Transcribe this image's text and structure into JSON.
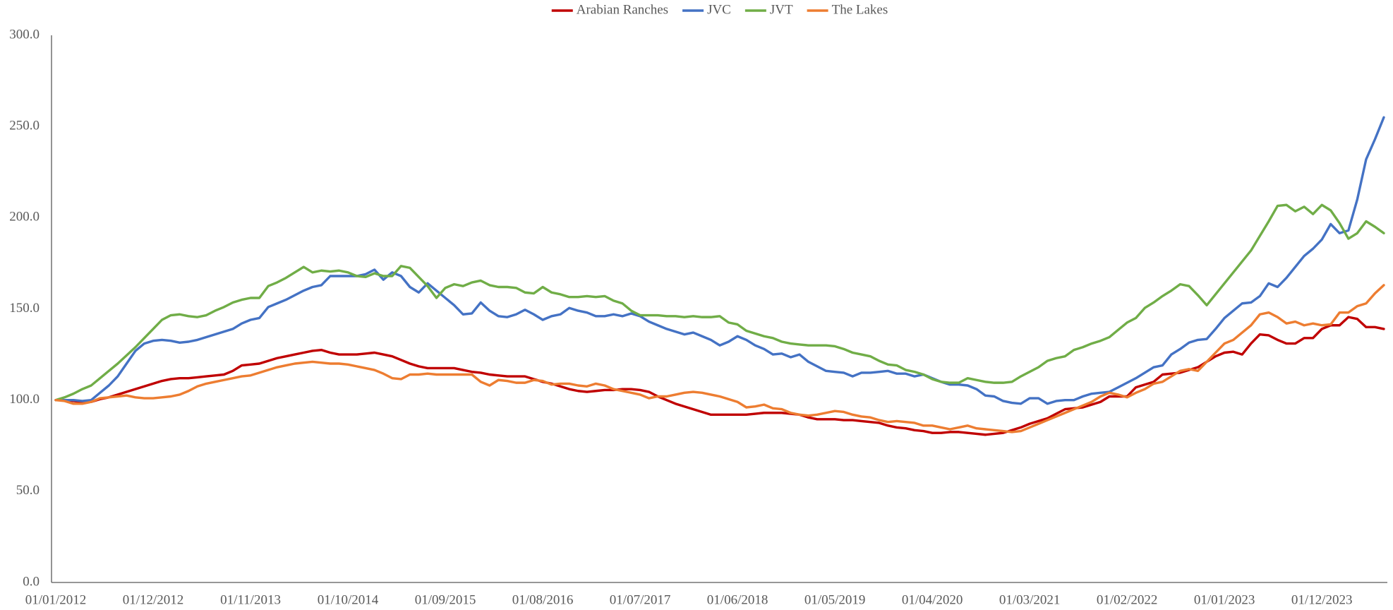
{
  "chart_data": {
    "type": "line",
    "categories": [
      "01/01/2012",
      null,
      null,
      null,
      null,
      null,
      null,
      null,
      null,
      null,
      null,
      "01/12/2012",
      null,
      null,
      null,
      null,
      null,
      null,
      null,
      null,
      null,
      null,
      "01/11/2013",
      null,
      null,
      null,
      null,
      null,
      null,
      null,
      null,
      null,
      null,
      "01/10/2014",
      null,
      null,
      null,
      null,
      null,
      null,
      null,
      null,
      null,
      null,
      "01/09/2015",
      null,
      null,
      null,
      null,
      null,
      null,
      null,
      null,
      null,
      null,
      "01/08/2016",
      null,
      null,
      null,
      null,
      null,
      null,
      null,
      null,
      null,
      null,
      "01/07/2017",
      null,
      null,
      null,
      null,
      null,
      null,
      null,
      null,
      null,
      null,
      "01/06/2018",
      null,
      null,
      null,
      null,
      null,
      null,
      null,
      null,
      null,
      null,
      "01/05/2019",
      null,
      null,
      null,
      null,
      null,
      null,
      null,
      null,
      null,
      null,
      "01/04/2020",
      null,
      null,
      null,
      null,
      null,
      null,
      null,
      null,
      null,
      null,
      "01/03/2021",
      null,
      null,
      null,
      null,
      null,
      null,
      null,
      null,
      null,
      null,
      "01/02/2022",
      null,
      null,
      null,
      null,
      null,
      null,
      null,
      null,
      null,
      null,
      "01/01/2023",
      null,
      null,
      null,
      null,
      null,
      null,
      null,
      null,
      null,
      null,
      "01/12/2023",
      null,
      null,
      null,
      null,
      null,
      null,
      null
    ],
    "series": [
      {
        "name": "Arabian Ranches",
        "color": "#c00000",
        "values": [
          100,
          100,
          99.5,
          99,
          99,
          100.5,
          101.5,
          103,
          104.5,
          106,
          107.5,
          109,
          110.5,
          111.5,
          112,
          112,
          112.5,
          113,
          113.5,
          114,
          116,
          119,
          119.5,
          120,
          121.5,
          123,
          124,
          125,
          126,
          127,
          127.5,
          126,
          125,
          125,
          125,
          125.5,
          126,
          125,
          124,
          122,
          120,
          118.5,
          117.5,
          117.5,
          117.5,
          117.5,
          116.5,
          115.5,
          115,
          114,
          113.5,
          113,
          113,
          113,
          111.5,
          110,
          109,
          107.5,
          106,
          105,
          104.5,
          105,
          105.5,
          105.5,
          106,
          106,
          105.5,
          104.5,
          102,
          100,
          98,
          96.5,
          95,
          93.5,
          92,
          92,
          92,
          92,
          92,
          92.5,
          93,
          93,
          93,
          92.5,
          92,
          90.5,
          89.5,
          89.5,
          89.5,
          89,
          89,
          88.5,
          88,
          87.5,
          86,
          85,
          84.5,
          83.5,
          83,
          82,
          82,
          82.5,
          82.5,
          82,
          81.5,
          81,
          81.5,
          82,
          83.5,
          85,
          87,
          88.5,
          90,
          92.5,
          95,
          95.5,
          96,
          97.5,
          99,
          102,
          102,
          102,
          107,
          108.5,
          110,
          114,
          114.5,
          115,
          116.5,
          118,
          121,
          124,
          126,
          126.5,
          125,
          131,
          136,
          135.5,
          133,
          131,
          131,
          134,
          134,
          139,
          141,
          141,
          145.5,
          144.5,
          140,
          140,
          139
        ]
      },
      {
        "name": "JVC",
        "color": "#4472c4",
        "values": [
          100,
          100,
          100,
          99.5,
          100,
          104,
          108,
          113,
          120,
          127,
          131,
          132.5,
          133,
          132.5,
          131.5,
          132,
          133,
          134.5,
          136,
          137.5,
          139,
          142,
          144,
          145,
          151,
          153,
          155,
          157.5,
          160,
          162,
          163,
          168,
          168,
          168,
          168,
          169,
          171.5,
          166,
          170,
          168,
          162,
          159,
          164,
          160,
          156,
          152,
          147,
          147.5,
          153.5,
          149,
          146,
          145.5,
          147,
          149.5,
          147,
          144,
          146,
          147,
          150.5,
          149,
          148,
          146,
          146,
          147,
          146,
          147.5,
          146,
          143,
          141,
          139,
          137.5,
          136,
          137,
          135,
          133,
          130,
          132,
          135,
          133,
          130,
          128,
          125,
          125.5,
          123.5,
          125,
          121,
          118.5,
          116,
          115.5,
          115,
          113,
          115,
          115,
          115.5,
          116,
          114.5,
          114.5,
          113,
          114,
          112,
          110,
          108.5,
          108.5,
          108,
          106,
          102.5,
          102,
          99.5,
          98.5,
          98,
          101,
          101,
          98,
          99.5,
          100,
          100,
          102,
          103.5,
          104,
          104.5,
          107,
          109.5,
          112,
          115,
          118,
          119,
          125,
          128,
          131.5,
          133,
          133.5,
          139,
          145,
          149,
          153,
          153.5,
          157,
          164,
          162,
          167,
          173,
          179,
          183,
          188,
          196.5,
          191.5,
          193,
          210,
          232,
          243,
          255
        ]
      },
      {
        "name": "JVT",
        "color": "#70ad47",
        "values": [
          100,
          101.5,
          103.5,
          106,
          108,
          112,
          116,
          120,
          124.5,
          129,
          134,
          139,
          144,
          146.5,
          147,
          146,
          145.5,
          146.5,
          149,
          151,
          153.5,
          155,
          156,
          156,
          162.5,
          164.5,
          167,
          170,
          173,
          170,
          171,
          170.5,
          171,
          170,
          168,
          167.5,
          169.5,
          168,
          168,
          173.5,
          172.5,
          167.5,
          162.5,
          156,
          161.5,
          163.5,
          162.5,
          164.5,
          165.5,
          163,
          162,
          162,
          161.5,
          159,
          158.5,
          162,
          159,
          158,
          156.5,
          156.5,
          157,
          156.5,
          157,
          154.5,
          153,
          149,
          146.5,
          146.5,
          146.5,
          146,
          146,
          145.5,
          146,
          145.5,
          145.5,
          146,
          142.5,
          141.5,
          138,
          136.5,
          135,
          134,
          132,
          131,
          130.5,
          130,
          130,
          130,
          129.5,
          128,
          126,
          125,
          124,
          121.5,
          119.5,
          119,
          116.5,
          115.5,
          114,
          111.5,
          110,
          109.5,
          109.5,
          112,
          111,
          110,
          109.5,
          109.5,
          110,
          113,
          115.5,
          118,
          121.5,
          123,
          124,
          127.5,
          129,
          131,
          132.5,
          134.5,
          138.5,
          142.5,
          145,
          150.5,
          153.5,
          157,
          160,
          163.5,
          162.5,
          157.5,
          152,
          158,
          164,
          170,
          176,
          182,
          190,
          198,
          206.5,
          207,
          203.5,
          206,
          202,
          207,
          204,
          197,
          188.5,
          191.5,
          198,
          195,
          191.5
        ]
      },
      {
        "name": "The Lakes",
        "color": "#ed7d31",
        "values": [
          100,
          99.5,
          98,
          98,
          99,
          101,
          101.5,
          102,
          102.5,
          101.5,
          101,
          101,
          101.5,
          102,
          103,
          105,
          107.5,
          109,
          110,
          111,
          112,
          113,
          113.5,
          115,
          116.5,
          118,
          119,
          120,
          120.5,
          121,
          120.5,
          120,
          120,
          119.5,
          118.5,
          117.5,
          116.5,
          114.5,
          112,
          111.5,
          114,
          114,
          114.5,
          114,
          114,
          114,
          114,
          114,
          110,
          108,
          111,
          110.5,
          109.5,
          109.5,
          111,
          110.5,
          108.5,
          109,
          109,
          108,
          107.5,
          109,
          108,
          106,
          105,
          104,
          103,
          101,
          102,
          102,
          103,
          104,
          104.5,
          104,
          103,
          102,
          100.5,
          99,
          96,
          96.5,
          97.5,
          95.5,
          95,
          93,
          92,
          91.5,
          92,
          93,
          94,
          93.5,
          92,
          91,
          90.5,
          89,
          88,
          88.5,
          88,
          87.5,
          86,
          86,
          85,
          84,
          85,
          86,
          84.5,
          84,
          83.5,
          83,
          82.5,
          83,
          85,
          87,
          89,
          91,
          93,
          95,
          97,
          99,
          102,
          104,
          103,
          101.5,
          104,
          106,
          109,
          110,
          113,
          116,
          117,
          116,
          121,
          126,
          131,
          133,
          137,
          141,
          147,
          148,
          145.5,
          142,
          143,
          141,
          142,
          141,
          141.5,
          148,
          148,
          151.5,
          153,
          158.5,
          163
        ]
      }
    ],
    "ylim": [
      0,
      300
    ],
    "yticks": [
      {
        "value": 0,
        "label": "0.0"
      },
      {
        "value": 50,
        "label": "50.0"
      },
      {
        "value": 100,
        "label": "100.0"
      },
      {
        "value": 150,
        "label": "150.0"
      },
      {
        "value": 200,
        "label": "200.0"
      },
      {
        "value": 250,
        "label": "250.0"
      },
      {
        "value": 300,
        "label": "300.0"
      }
    ],
    "grid": false,
    "legend": "top"
  }
}
